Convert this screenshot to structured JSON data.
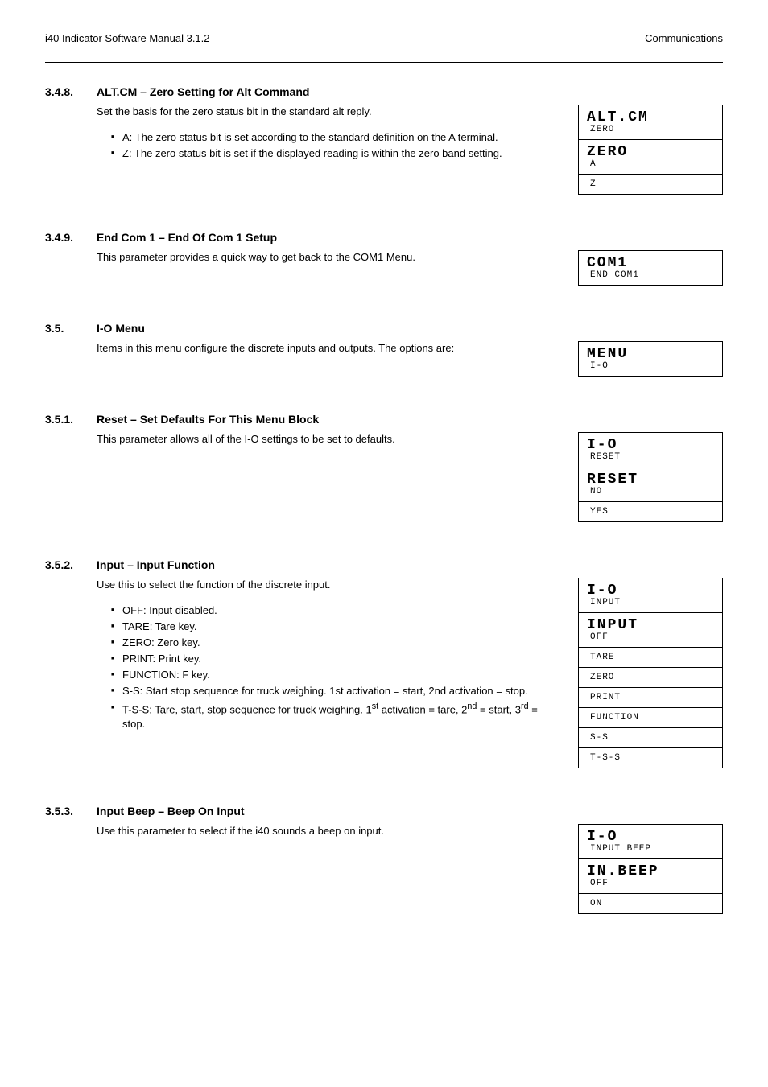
{
  "header": {
    "left": "i40 Indicator Software Manual 3.1.2",
    "right": "Communications"
  },
  "s1": {
    "num": "3.4.8.",
    "title": "ALT.CM – Zero Setting for Alt Command",
    "body": "Set the basis for the zero status bit in the standard alt reply.",
    "b1": "A: The zero status bit is set according to the standard definition on the A terminal.",
    "b2": "Z: The zero status bit is set if the displayed reading is within the zero band setting.",
    "boxA": {
      "big": "Alt.CM",
      "small": "ZERO"
    },
    "boxB": {
      "big": "ZErO",
      "small": "A"
    },
    "opt1": "Z"
  },
  "s2": {
    "num": "3.4.9.",
    "title": "End Com 1 – End Of Com 1 Setup",
    "body": "This parameter provides a quick way to get back to the COM1 Menu.",
    "box": {
      "big": "COM1",
      "small": "END COM1"
    }
  },
  "s3": {
    "title": "I-O Menu",
    "intro": "Items in this menu configure the discrete inputs and outputs. The options are:",
    "menubox": {
      "big": "MENU",
      "small": "I-O"
    },
    "sub1": {
      "num": "3.5.1.",
      "title": "Reset – Set Defaults For This Menu Block",
      "body": "This parameter allows all of the I-O settings to be set to defaults.",
      "boxA": {
        "big": "I-O",
        "small": "RESET"
      },
      "boxB": {
        "big": "rESEt",
        "small": "NO"
      },
      "opt1": "YES"
    },
    "sub2": {
      "num": "3.5.2.",
      "title": "Input – Input Function",
      "body": "Use this to select the function of the discrete input.",
      "li1": "OFF: Input disabled.",
      "li2": "TARE: Tare key.",
      "li3": "ZERO: Zero key.",
      "li4": "PRINT: Print key.",
      "li5": "FUNCTION: F key.",
      "li6": "S-S: Start stop sequence for truck weighing. 1st activation = start, 2nd activation = stop.",
      "li7text": "T-S-S: Tare, start, stop sequence for truck weighing. 1",
      "li7sup": "st",
      "li7text2": " activation = tare, 2",
      "li7sup2": "nd",
      "li7text3": " = start, 3",
      "li7sup3": "rd",
      "li7text4": " = stop.",
      "boxA": {
        "big": "I-O",
        "small": "INPUT"
      },
      "boxB": {
        "big": "InPUt",
        "small": "OFF"
      },
      "opts": [
        "TARE",
        "ZERO",
        "PRINT",
        "FUNCTION",
        "S-S",
        "T-S-S"
      ]
    },
    "sub3": {
      "num": "3.5.3.",
      "title": "Input Beep – Beep On Input",
      "body": "Use this parameter to select if the i40 sounds a beep on input.",
      "boxA": {
        "big": "I-O",
        "small": "INPUT BEEP"
      },
      "boxB": {
        "big": "In.bEEP",
        "small": "OFF"
      },
      "opt1": "ON"
    }
  },
  "secnum35": "3.5."
}
